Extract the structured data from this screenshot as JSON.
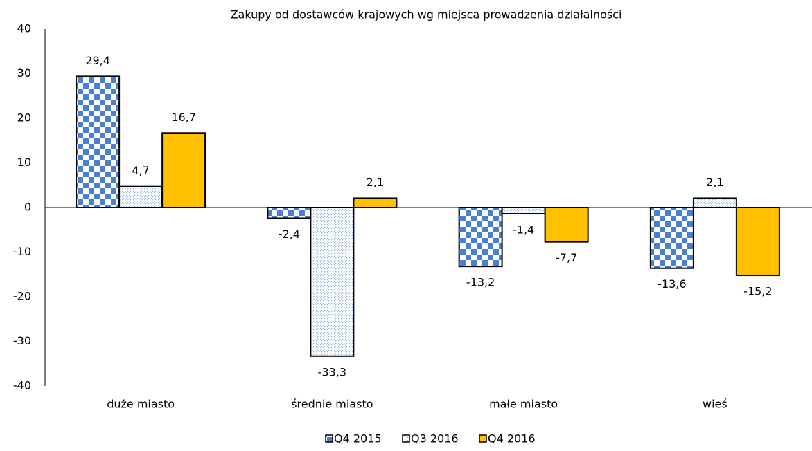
{
  "chart_data": {
    "type": "bar",
    "title": "Zakupy od dostawców krajowych wg miejsca prowadzenia działalności",
    "categories": [
      "duże miasto",
      "średnie miasto",
      "małe miasto",
      "wieś"
    ],
    "series": [
      {
        "name": "Q4 2015",
        "color": "#4a7fd1",
        "values": [
          29.4,
          -2.4,
          -13.2,
          -13.6
        ],
        "value_labels": [
          "29,4",
          "-2,4",
          "-13,2",
          "-13,6"
        ]
      },
      {
        "name": "Q3 2016",
        "color": "#8fb4e3",
        "values": [
          4.7,
          -33.3,
          -1.4,
          2.1
        ],
        "value_labels": [
          "4,7",
          "-33,3",
          "-1,4",
          "2,1"
        ]
      },
      {
        "name": "Q4 2016",
        "color": "#ffc000",
        "values": [
          16.7,
          2.1,
          -7.7,
          -15.2
        ],
        "value_labels": [
          "16,7",
          "2,1",
          "-7,7",
          "-15,2"
        ]
      }
    ],
    "ylim": [
      -40,
      40
    ],
    "yticks": [
      -40,
      -30,
      -20,
      -10,
      0,
      10,
      20,
      30,
      40
    ],
    "grid": false,
    "legend": "bottom"
  }
}
